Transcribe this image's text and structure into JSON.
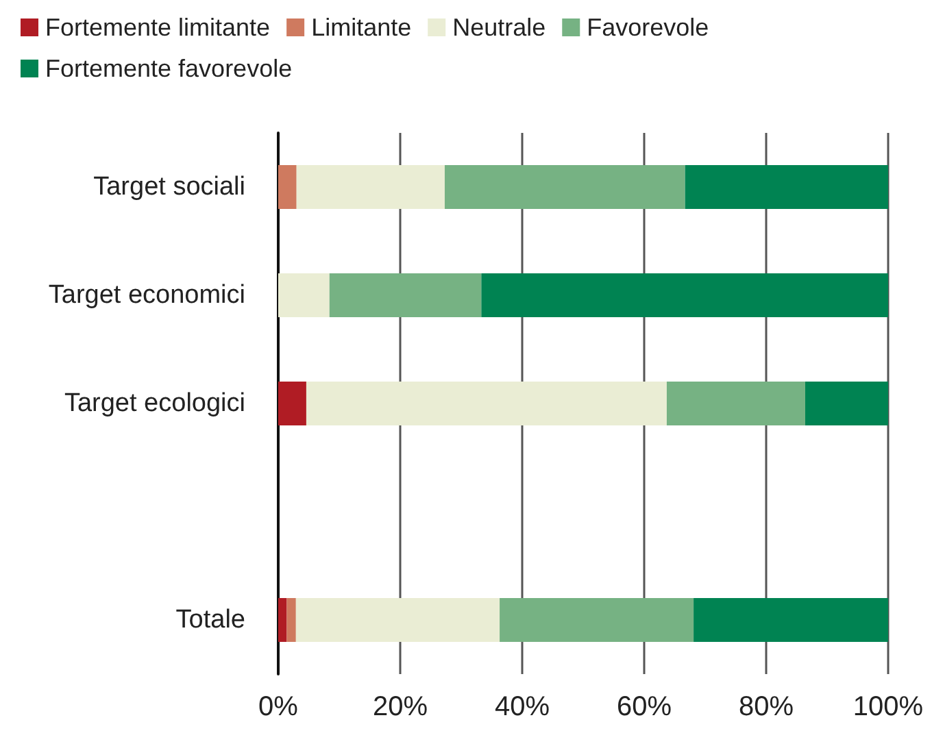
{
  "chart_data": {
    "type": "bar",
    "orientation": "horizontal",
    "stacked": true,
    "categories": [
      "Target sociali",
      "Target economici",
      "Target ecologici",
      null,
      "Totale"
    ],
    "series": [
      {
        "name": "Fortemente limitante",
        "color": "#b01c24",
        "values": [
          null,
          null,
          4.6,
          null,
          1.4
        ]
      },
      {
        "name": "Limitante",
        "color": "#cf7a5f",
        "values": [
          3.0,
          null,
          null,
          null,
          1.5
        ]
      },
      {
        "name": "Neutrale",
        "color": "#eaedd4",
        "values": [
          24.3,
          8.4,
          59.1,
          null,
          33.4
        ]
      },
      {
        "name": "Favorevole",
        "color": "#76b283",
        "values": [
          39.4,
          24.9,
          22.7,
          null,
          31.8
        ]
      },
      {
        "name": "Fortemente favorevole",
        "color": "#008352",
        "values": [
          33.3,
          66.7,
          13.6,
          null,
          31.9
        ]
      }
    ],
    "xlim": [
      0,
      100
    ],
    "xticks": [
      {
        "value": 0,
        "label": "0%"
      },
      {
        "value": 20,
        "label": "20%"
      },
      {
        "value": 40,
        "label": "40%"
      },
      {
        "value": 60,
        "label": "60%"
      },
      {
        "value": 80,
        "label": "80%"
      },
      {
        "value": 100,
        "label": "100%"
      }
    ],
    "grid": "x",
    "legend": "top"
  }
}
